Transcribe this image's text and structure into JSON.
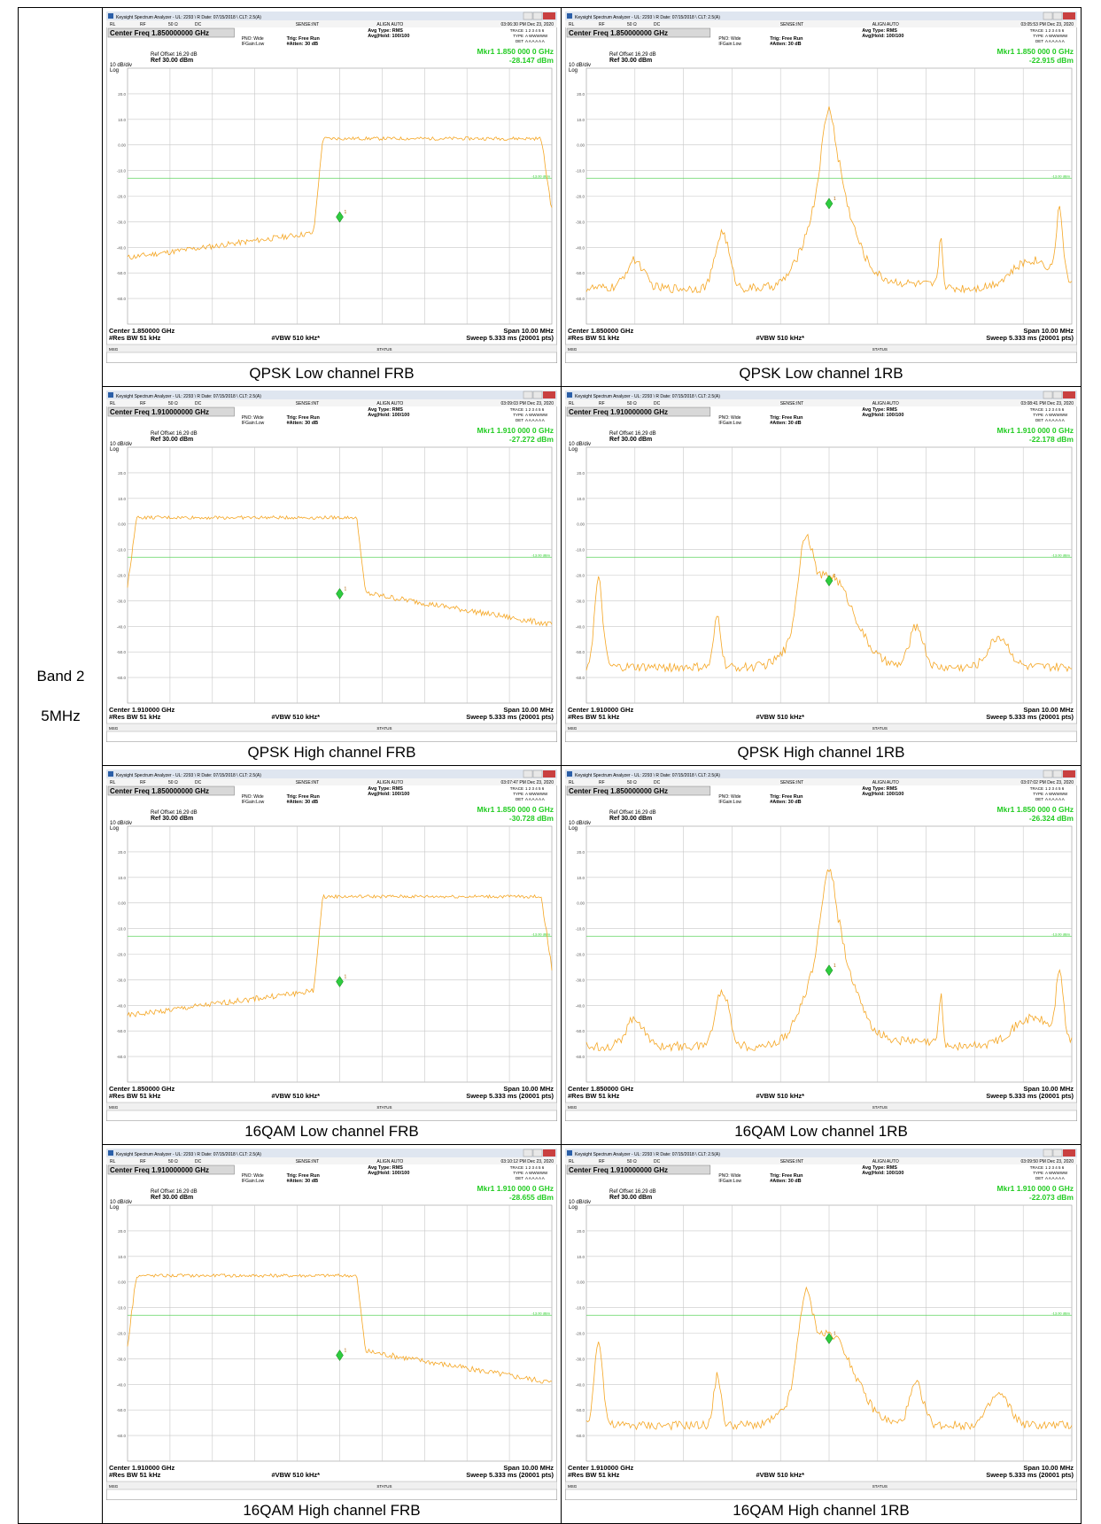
{
  "row_label_band": "Band 2",
  "row_label_bw": "5MHz",
  "colors": {
    "trace": "#f5a623",
    "marker": "#2ecc40",
    "display_line": "#5fd35f",
    "marker_text": "#22cc22",
    "titlebar": "#2b5fa8"
  },
  "common": {
    "window_title": "Keysight Spectrum Analyzer - UL: 2293 \\ R Date: 07/15/2018 \\ CLT: 2.5(A)",
    "rl": "RL",
    "rf": "RF",
    "ohm": "50 Ω",
    "dc": "DC",
    "sense": "SENSE:INT",
    "align": "ALIGN AUTO",
    "avg_type": "Avg Type: RMS",
    "avg_hold": "Avg|Hold: 100/100",
    "trace_label": "TRACE",
    "trace_nums": "1 2 3 4 5 6",
    "type_label": "TYPE",
    "type_vals": "A WWWWW",
    "det_label": "DET",
    "det_vals": "A A A A A A",
    "pno": "PNO: Wide",
    "ifgain": "IFGain:Low",
    "trig": "Trig: Free Run",
    "atten": "#Atten: 30 dB",
    "ref_offset": "Ref Offset 16.29 dB",
    "ref": "Ref 30.00 dBm",
    "scale": "10 dB/div",
    "log": "Log",
    "span": "Span 10.00 MHz",
    "res_bw": "#Res BW 51 kHz",
    "vbw": "#VBW 510 kHz*",
    "sweep": "Sweep  5.333 ms (20001 pts)",
    "msg": "MSG",
    "status": "STATUS",
    "dl_label": "-13.00 dBm",
    "y_ticks": [
      "20.0",
      "10.0",
      "0.00",
      "-10.0",
      "-20.0",
      "-30.0",
      "-40.0",
      "-50.0",
      "-60.0"
    ],
    "marker_num": "1"
  },
  "cells": [
    {
      "caption": "QPSK Low channel FRB",
      "center": "Center Freq 1.850000000 GHz",
      "center_bottom": "Center 1.850000 GHz",
      "mkr_freq": "Mkr1 1.850 000 0 GHz",
      "mkr_val": "-28.147 dBm",
      "time": "03:06:30 PM Dec 23, 2020",
      "shape": "frb_low"
    },
    {
      "caption": "QPSK Low channel 1RB",
      "center": "Center Freq 1.850000000 GHz",
      "center_bottom": "Center 1.850000 GHz",
      "mkr_freq": "Mkr1 1.850 000 0 GHz",
      "mkr_val": "-22.915 dBm",
      "time": "03:05:53 PM Dec 23, 2020",
      "shape": "rb_low"
    },
    {
      "caption": "QPSK High channel FRB",
      "center": "Center Freq 1.910000000 GHz",
      "center_bottom": "Center 1.910000 GHz",
      "mkr_freq": "Mkr1 1.910 000 0 GHz",
      "mkr_val": "-27.272 dBm",
      "time": "03:09:03 PM Dec 23, 2020",
      "shape": "frb_high"
    },
    {
      "caption": "QPSK High channel 1RB",
      "center": "Center Freq 1.910000000 GHz",
      "center_bottom": "Center 1.910000 GHz",
      "mkr_freq": "Mkr1 1.910 000 0 GHz",
      "mkr_val": "-22.178 dBm",
      "time": "03:08:41 PM Dec 23, 2020",
      "shape": "rb_high"
    },
    {
      "caption": "16QAM Low channel FRB",
      "center": "Center Freq 1.850000000 GHz",
      "center_bottom": "Center 1.850000 GHz",
      "mkr_freq": "Mkr1 1.850 000 0 GHz",
      "mkr_val": "-30.728 dBm",
      "time": "03:07:47 PM Dec 23, 2020",
      "shape": "frb_low"
    },
    {
      "caption": "16QAM Low channel 1RB",
      "center": "Center Freq 1.850000000 GHz",
      "center_bottom": "Center 1.850000 GHz",
      "mkr_freq": "Mkr1 1.850 000 0 GHz",
      "mkr_val": "-26.324 dBm",
      "time": "03:07:02 PM Dec 23, 2020",
      "shape": "rb_low"
    },
    {
      "caption": "16QAM High channel FRB",
      "center": "Center Freq 1.910000000 GHz",
      "center_bottom": "Center 1.910000 GHz",
      "mkr_freq": "Mkr1 1.910 000 0 GHz",
      "mkr_val": "-28.655 dBm",
      "time": "03:10:12 PM Dec 23, 2020",
      "shape": "frb_high"
    },
    {
      "caption": "16QAM High channel 1RB",
      "center": "Center Freq 1.910000000 GHz",
      "center_bottom": "Center 1.910000 GHz",
      "mkr_freq": "Mkr1 1.910 000 0 GHz",
      "mkr_val": "-22.073 dBm",
      "time": "03:09:50 PM Dec 23, 2020",
      "shape": "rb_high"
    }
  ]
}
